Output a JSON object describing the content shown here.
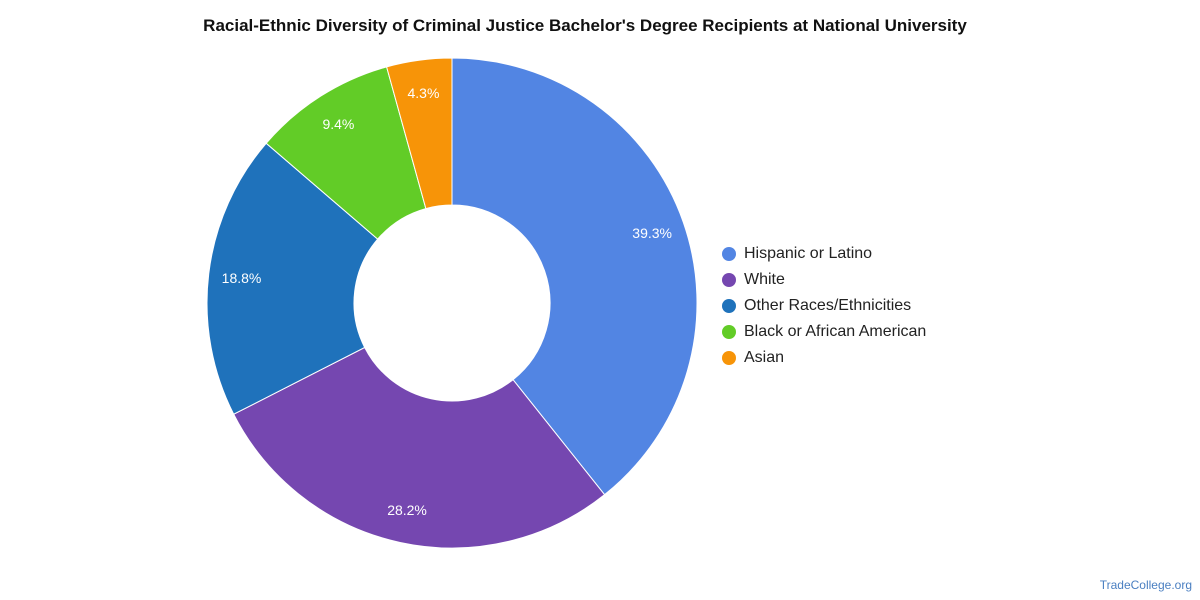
{
  "chart_data": {
    "type": "pie",
    "title": "Racial-Ethnic Diversity of Criminal Justice Bachelor's Degree Recipients at National University",
    "donut": true,
    "legend_position": "right",
    "categories": [
      "Hispanic or Latino",
      "White",
      "Other Races/Ethnicities",
      "Black or African American",
      "Asian"
    ],
    "values": [
      39.3,
      28.2,
      18.8,
      9.4,
      4.3
    ],
    "labels": [
      "39.3%",
      "28.2%",
      "18.8%",
      "9.4%",
      "4.3%"
    ],
    "colors": [
      "#5285e3",
      "#7547b0",
      "#1f72bb",
      "#62cc27",
      "#f79408"
    ]
  },
  "watermark": "TradeCollege.org"
}
